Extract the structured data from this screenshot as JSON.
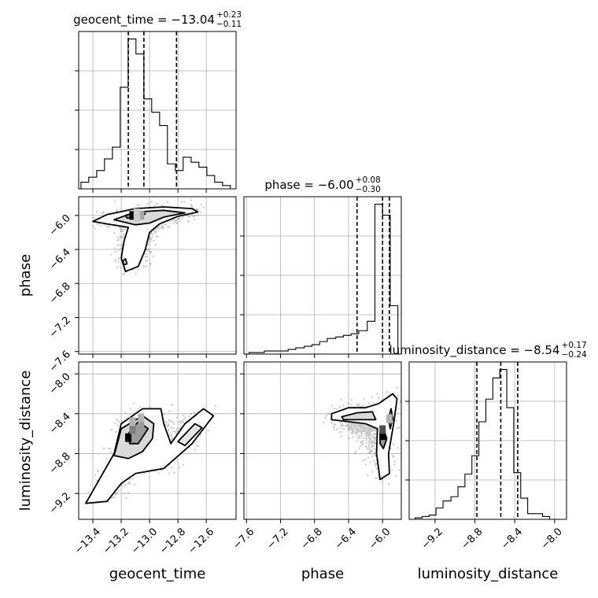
{
  "chart_data": {
    "type": "corner",
    "parameters": [
      "geocent_time",
      "phase",
      "luminosity_distance"
    ],
    "axis_labels": {
      "geocent_time": "geocent_time",
      "phase": "phase",
      "luminosity_distance": "luminosity_distance"
    },
    "titles": [
      {
        "param": "geocent_time",
        "label": "geocent_time",
        "median": "−13.04",
        "plus": "+0.23",
        "minus": "−0.11"
      },
      {
        "param": "phase",
        "label": "phase",
        "median": "−6.00",
        "plus": "+0.08",
        "minus": "−0.30"
      },
      {
        "param": "luminosity_distance",
        "label": "luminosity_distance",
        "median": "−8.54",
        "plus": "+0.17",
        "minus": "−0.24"
      }
    ],
    "ranges": {
      "geocent_time": [
        -13.5,
        -12.39
      ],
      "phase": [
        -7.63,
        -5.78
      ],
      "luminosity_distance": [
        -9.46,
        -7.88
      ]
    },
    "ticks": {
      "geocent_time": {
        "values": [
          -13.4,
          -13.2,
          -13.0,
          -12.8,
          -12.6
        ],
        "labels": [
          "−13.4",
          "−13.2",
          "−13.0",
          "−12.8",
          "−12.6"
        ]
      },
      "phase": {
        "values": [
          -7.6,
          -7.2,
          -6.8,
          -6.4,
          -6.0
        ],
        "labels": [
          "−7.6",
          "−7.2",
          "−6.8",
          "−6.4",
          "−6.0"
        ]
      },
      "luminosity_distance": {
        "values": [
          -9.2,
          -8.8,
          -8.4,
          -8.0
        ],
        "labels": [
          "−9.2",
          "−8.8",
          "−8.4",
          "−8.0"
        ]
      }
    },
    "grid": true,
    "quantile_lines": {
      "geocent_time": [
        -13.15,
        -13.04,
        -12.81
      ],
      "phase": [
        -6.3,
        -6.0,
        -5.92
      ],
      "luminosity_distance": [
        -8.78,
        -8.54,
        -8.37
      ]
    },
    "histograms": {
      "geocent_time": {
        "bin_edges": [
          -13.484,
          -13.429,
          -13.373,
          -13.318,
          -13.262,
          -13.207,
          -13.151,
          -13.096,
          -13.04,
          -12.985,
          -12.929,
          -12.874,
          -12.818,
          -12.763,
          -12.707,
          -12.652,
          -12.596,
          -12.541,
          -12.485,
          -12.43
        ],
        "counts": [
          0.04,
          0.07,
          0.11,
          0.18,
          0.25,
          0.61,
          0.9,
          0.81,
          0.54,
          0.46,
          0.38,
          0.15,
          0.11,
          0.19,
          0.16,
          0.13,
          0.08,
          0.04,
          0.02
        ]
      },
      "phase": {
        "bin_edges": [
          -7.57,
          -7.48,
          -7.39,
          -7.29,
          -7.2,
          -7.11,
          -7.02,
          -6.92,
          -6.83,
          -6.74,
          -6.65,
          -6.55,
          -6.46,
          -6.37,
          -6.28,
          -6.18,
          -6.09,
          -6.0,
          -5.91,
          -5.82
        ],
        "counts": [
          0.01,
          0.01,
          0.02,
          0.02,
          0.02,
          0.03,
          0.04,
          0.05,
          0.06,
          0.08,
          0.1,
          0.11,
          0.12,
          0.13,
          0.15,
          0.21,
          0.96,
          0.89,
          0.31
        ]
      },
      "luminosity_distance": {
        "bin_edges": [
          -9.4,
          -9.33,
          -9.26,
          -9.19,
          -9.12,
          -9.04,
          -8.97,
          -8.9,
          -8.83,
          -8.76,
          -8.69,
          -8.62,
          -8.55,
          -8.48,
          -8.41,
          -8.34,
          -8.27,
          -8.19,
          -8.12,
          -8.05
        ],
        "counts": [
          0.01,
          0.02,
          0.03,
          0.08,
          0.13,
          0.16,
          0.23,
          0.32,
          0.45,
          0.69,
          0.85,
          1.0,
          1.06,
          0.79,
          0.33,
          0.15,
          0.04,
          0.04,
          0.02
        ]
      }
    },
    "contours_2d": [
      {
        "x": "geocent_time",
        "y": "phase",
        "levels": [
          [
            [
              -13.4,
              -6.07
            ],
            [
              -13.3,
              -5.99
            ],
            [
              -13.1,
              -5.92
            ],
            [
              -12.9,
              -5.9
            ],
            [
              -12.7,
              -5.92
            ],
            [
              -12.66,
              -5.96
            ],
            [
              -12.8,
              -6.01
            ],
            [
              -12.93,
              -6.1
            ],
            [
              -13.0,
              -6.2
            ],
            [
              -13.03,
              -6.4
            ],
            [
              -13.08,
              -6.6
            ],
            [
              -13.17,
              -6.66
            ],
            [
              -13.2,
              -6.5
            ],
            [
              -13.18,
              -6.3
            ],
            [
              -13.15,
              -6.14
            ],
            [
              -13.3,
              -6.1
            ]
          ],
          [
            [
              -13.25,
              -6.05
            ],
            [
              -13.1,
              -5.96
            ],
            [
              -12.9,
              -5.94
            ],
            [
              -12.75,
              -5.97
            ],
            [
              -12.9,
              -6.02
            ],
            [
              -13.0,
              -6.09
            ],
            [
              -13.1,
              -6.11
            ]
          ],
          [
            [
              -13.17,
              -6.0
            ],
            [
              -13.1,
              -5.97
            ],
            [
              -13.03,
              -5.98
            ],
            [
              -13.08,
              -6.03
            ],
            [
              -13.16,
              -6.03
            ]
          ],
          [
            [
              -13.19,
              -6.54
            ],
            [
              -13.17,
              -6.51
            ],
            [
              -13.16,
              -6.57
            ],
            [
              -13.18,
              -6.58
            ]
          ]
        ],
        "density_cells": [
          [
            -13.12,
            -6.0,
            1.0
          ],
          [
            -13.09,
            -6.0,
            0.6
          ],
          [
            -13.06,
            -6.0,
            0.35
          ],
          [
            -13.09,
            -5.97,
            0.2
          ],
          [
            -13.09,
            -6.03,
            0.2
          ]
        ],
        "scatter_center": [
          -13.05,
          -6.1
        ],
        "n_points": 900
      },
      {
        "x": "geocent_time",
        "y": "luminosity_distance",
        "levels": [
          [
            [
              -13.45,
              -9.3
            ],
            [
              -13.35,
              -9.05
            ],
            [
              -13.25,
              -8.8
            ],
            [
              -13.2,
              -8.5
            ],
            [
              -13.05,
              -8.35
            ],
            [
              -12.92,
              -8.35
            ],
            [
              -12.9,
              -8.5
            ],
            [
              -12.85,
              -8.7
            ],
            [
              -12.75,
              -8.5
            ],
            [
              -12.62,
              -8.35
            ],
            [
              -12.55,
              -8.42
            ],
            [
              -12.7,
              -8.7
            ],
            [
              -12.9,
              -8.95
            ],
            [
              -13.1,
              -9.0
            ],
            [
              -13.2,
              -9.1
            ],
            [
              -13.3,
              -9.28
            ]
          ],
          [
            [
              -13.25,
              -8.82
            ],
            [
              -13.2,
              -8.55
            ],
            [
              -13.05,
              -8.42
            ],
            [
              -12.97,
              -8.5
            ],
            [
              -12.98,
              -8.65
            ],
            [
              -13.05,
              -8.78
            ],
            [
              -13.15,
              -8.85
            ]
          ],
          [
            [
              -13.15,
              -8.6
            ],
            [
              -13.08,
              -8.48
            ],
            [
              -13.01,
              -8.55
            ],
            [
              -13.08,
              -8.7
            ],
            [
              -13.14,
              -8.7
            ]
          ],
          [
            [
              -12.8,
              -8.68
            ],
            [
              -12.68,
              -8.5
            ],
            [
              -12.63,
              -8.54
            ],
            [
              -12.75,
              -8.72
            ]
          ]
        ],
        "density_cells": [
          [
            -13.15,
            -8.64,
            1.0
          ],
          [
            -13.12,
            -8.56,
            0.5
          ],
          [
            -13.06,
            -8.52,
            0.4
          ],
          [
            -13.06,
            -8.44,
            0.3
          ],
          [
            -13.12,
            -8.48,
            0.3
          ]
        ],
        "scatter_center": [
          -13.0,
          -8.75
        ],
        "n_points": 900
      },
      {
        "x": "phase",
        "y": "luminosity_distance",
        "levels": [
          [
            [
              -6.6,
              -8.4
            ],
            [
              -6.4,
              -8.34
            ],
            [
              -6.2,
              -8.34
            ],
            [
              -6.05,
              -8.3
            ],
            [
              -5.88,
              -8.2
            ],
            [
              -5.83,
              -8.25
            ],
            [
              -5.87,
              -8.5
            ],
            [
              -5.93,
              -8.8
            ],
            [
              -5.92,
              -9.0
            ],
            [
              -6.03,
              -9.06
            ],
            [
              -6.07,
              -8.8
            ],
            [
              -6.06,
              -8.55
            ],
            [
              -6.2,
              -8.5
            ],
            [
              -6.4,
              -8.48
            ],
            [
              -6.6,
              -8.46
            ]
          ],
          [
            [
              -6.48,
              -8.43
            ],
            [
              -6.3,
              -8.39
            ],
            [
              -6.12,
              -8.38
            ],
            [
              -6.08,
              -8.46
            ],
            [
              -6.3,
              -8.46
            ],
            [
              -6.46,
              -8.46
            ]
          ],
          [
            [
              -6.03,
              -8.6
            ],
            [
              -5.99,
              -8.55
            ],
            [
              -5.95,
              -8.65
            ],
            [
              -5.99,
              -8.75
            ],
            [
              -6.03,
              -8.7
            ]
          ],
          [
            [
              -5.93,
              -8.45
            ],
            [
              -5.9,
              -8.35
            ],
            [
              -5.88,
              -8.45
            ],
            [
              -5.91,
              -8.55
            ]
          ]
        ],
        "density_cells": [
          [
            -6.0,
            -8.62,
            1.0
          ],
          [
            -6.0,
            -8.56,
            0.7
          ],
          [
            -5.92,
            -8.45,
            0.3
          ]
        ],
        "scatter_center": [
          -6.2,
          -8.55
        ],
        "n_points": 900
      }
    ]
  }
}
